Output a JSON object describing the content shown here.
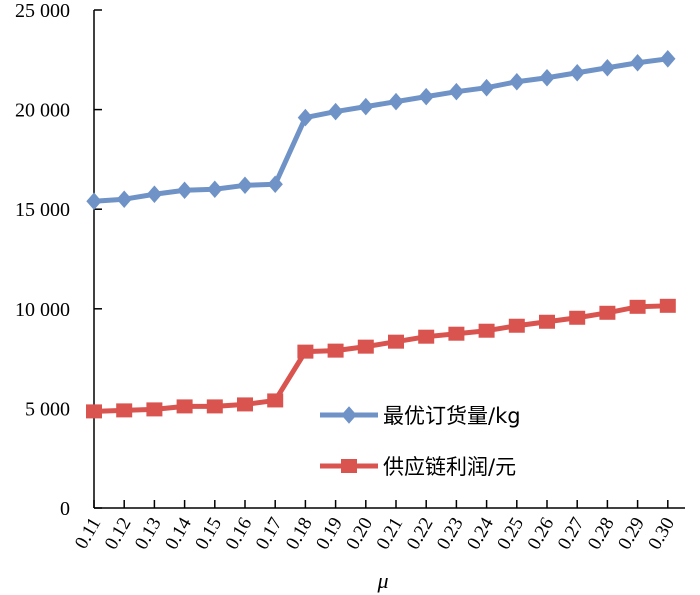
{
  "chart_data": {
    "type": "line",
    "xlabel": "μ",
    "ylabel": "",
    "ylim": [
      0,
      25000
    ],
    "yticks": [
      0,
      5000,
      10000,
      15000,
      20000,
      25000
    ],
    "ytick_labels": [
      "0",
      "5 000",
      "10 000",
      "15 000",
      "20 000",
      "25 000"
    ],
    "categories": [
      "0.11",
      "0.12",
      "0.13",
      "0.14",
      "0.15",
      "0.16",
      "0.17",
      "0.18",
      "0.19",
      "0.20",
      "0.21",
      "0.22",
      "0.23",
      "0.24",
      "0.25",
      "0.26",
      "0.27",
      "0.28",
      "0.29",
      "0.30"
    ],
    "legend_position": "right",
    "grid": false,
    "series": [
      {
        "name": "最优订货量/kg",
        "color": "#6f93c6",
        "marker": "diamond",
        "values": [
          15400,
          15500,
          15750,
          15950,
          16000,
          16200,
          16250,
          19600,
          19900,
          20150,
          20400,
          20650,
          20900,
          21100,
          21400,
          21600,
          21850,
          22100,
          22350,
          22550
        ]
      },
      {
        "name": "供应链利润/元",
        "color": "#d9534f",
        "marker": "square",
        "values": [
          4850,
          4900,
          4950,
          5100,
          5100,
          5200,
          5400,
          7850,
          7900,
          8100,
          8350,
          8600,
          8750,
          8900,
          9150,
          9350,
          9550,
          9800,
          10100,
          10150
        ]
      }
    ]
  }
}
